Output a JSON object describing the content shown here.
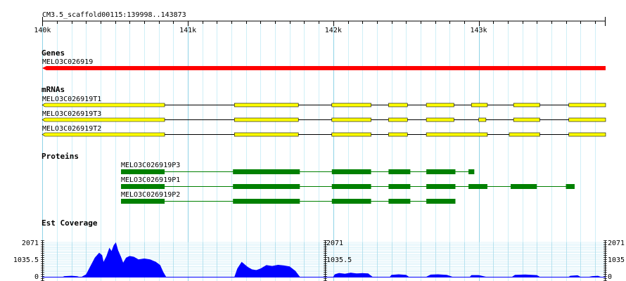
{
  "ruler": {
    "location": "CM3.5_scaffold00115:139998..143873",
    "ticks": [
      {
        "label": "140k",
        "value": 140000
      },
      {
        "label": "141k",
        "value": 141000
      },
      {
        "label": "142k",
        "value": 142000
      },
      {
        "label": "143k",
        "value": 143000
      }
    ],
    "start": 139998,
    "end": 143873
  },
  "genes": {
    "title": "Genes",
    "items": [
      {
        "name": "MELO3C026919",
        "start": 139998,
        "end": 143873,
        "strand": "-",
        "color": "#ff0000"
      }
    ]
  },
  "mrnas": {
    "title": "mRNAs",
    "color": "#ffff00",
    "items": [
      {
        "name": "MELO3C026919T1",
        "exons": [
          [
            139998,
            140840
          ],
          [
            141320,
            141760
          ],
          [
            141990,
            142260
          ],
          [
            142380,
            142510
          ],
          [
            142640,
            142830
          ],
          [
            142950,
            143060
          ],
          [
            143240,
            143420
          ],
          [
            143620,
            143873
          ]
        ]
      },
      {
        "name": "MELO3C026919T3",
        "exons": [
          [
            139998,
            140840
          ],
          [
            141320,
            141760
          ],
          [
            141990,
            142260
          ],
          [
            142380,
            142510
          ],
          [
            142640,
            142830
          ],
          [
            143000,
            143050
          ],
          [
            143240,
            143420
          ],
          [
            143620,
            143873
          ]
        ]
      },
      {
        "name": "MELO3C026919T2",
        "exons": [
          [
            139998,
            140840
          ],
          [
            141320,
            141760
          ],
          [
            141990,
            142260
          ],
          [
            142380,
            142510
          ],
          [
            142640,
            143060
          ],
          [
            143210,
            143420
          ],
          [
            143620,
            143873
          ]
        ]
      }
    ]
  },
  "proteins": {
    "title": "Proteins",
    "color": "#008000",
    "items": [
      {
        "name": "MELO3C026919P3",
        "span": [
          140540,
          142950
        ],
        "blocks": [
          [
            140540,
            140840
          ],
          [
            141310,
            141770
          ],
          [
            141990,
            142260
          ],
          [
            142380,
            142530
          ],
          [
            142640,
            142840
          ],
          [
            142930,
            142970
          ]
        ]
      },
      {
        "name": "MELO3C026919P1",
        "span": [
          140540,
          143660
        ],
        "blocks": [
          [
            140540,
            140840
          ],
          [
            141310,
            141770
          ],
          [
            141990,
            142260
          ],
          [
            142380,
            142530
          ],
          [
            142640,
            142840
          ],
          [
            142930,
            143060
          ],
          [
            143220,
            143400
          ],
          [
            143600,
            143660
          ]
        ]
      },
      {
        "name": "MELO3C026919P2",
        "span": [
          140540,
          142840
        ],
        "blocks": [
          [
            140540,
            140840
          ],
          [
            141310,
            141770
          ],
          [
            141990,
            142260
          ],
          [
            142380,
            142530
          ],
          [
            142640,
            142840
          ]
        ]
      }
    ]
  },
  "coverage": {
    "title": "Est Coverage",
    "max_label": "2071",
    "mid_label": "1035.5",
    "zero_label": "0",
    "max": 2071,
    "color": "#0000ff",
    "points": [
      [
        140140,
        0
      ],
      [
        140150,
        40
      ],
      [
        140200,
        60
      ],
      [
        140240,
        30
      ],
      [
        140250,
        0
      ],
      [
        140270,
        0
      ],
      [
        140300,
        150
      ],
      [
        140330,
        650
      ],
      [
        140360,
        1150
      ],
      [
        140390,
        1450
      ],
      [
        140410,
        1300
      ],
      [
        140420,
        900
      ],
      [
        140440,
        1250
      ],
      [
        140460,
        1750
      ],
      [
        140475,
        1550
      ],
      [
        140490,
        1900
      ],
      [
        140505,
        2071
      ],
      [
        140520,
        1600
      ],
      [
        140540,
        1200
      ],
      [
        140555,
        850
      ],
      [
        140575,
        1150
      ],
      [
        140600,
        1250
      ],
      [
        140630,
        1200
      ],
      [
        140660,
        1050
      ],
      [
        140700,
        1100
      ],
      [
        140740,
        1050
      ],
      [
        140780,
        900
      ],
      [
        140810,
        700
      ],
      [
        140830,
        300
      ],
      [
        140850,
        0
      ],
      [
        141320,
        0
      ],
      [
        141340,
        500
      ],
      [
        141370,
        900
      ],
      [
        141410,
        600
      ],
      [
        141440,
        450
      ],
      [
        141470,
        400
      ],
      [
        141500,
        500
      ],
      [
        141540,
        700
      ],
      [
        141580,
        650
      ],
      [
        141620,
        720
      ],
      [
        141660,
        680
      ],
      [
        141700,
        620
      ],
      [
        141740,
        350
      ],
      [
        141770,
        0
      ],
      [
        142000,
        0
      ],
      [
        142010,
        150
      ],
      [
        142040,
        230
      ],
      [
        142080,
        180
      ],
      [
        142120,
        250
      ],
      [
        142160,
        200
      ],
      [
        142200,
        220
      ],
      [
        142240,
        200
      ],
      [
        142270,
        0
      ],
      [
        142390,
        0
      ],
      [
        142400,
        120
      ],
      [
        142450,
        150
      ],
      [
        142500,
        120
      ],
      [
        142520,
        0
      ],
      [
        142640,
        0
      ],
      [
        142670,
        130
      ],
      [
        142720,
        150
      ],
      [
        142780,
        120
      ],
      [
        142820,
        0
      ],
      [
        142940,
        0
      ],
      [
        142950,
        100
      ],
      [
        143000,
        100
      ],
      [
        143050,
        0
      ],
      [
        143230,
        0
      ],
      [
        143250,
        120
      ],
      [
        143320,
        140
      ],
      [
        143400,
        100
      ],
      [
        143420,
        0
      ],
      [
        143620,
        0
      ],
      [
        143630,
        60
      ],
      [
        143680,
        90
      ],
      [
        143700,
        0
      ],
      [
        143760,
        0
      ],
      [
        143780,
        40
      ],
      [
        143820,
        60
      ],
      [
        143840,
        0
      ]
    ]
  }
}
